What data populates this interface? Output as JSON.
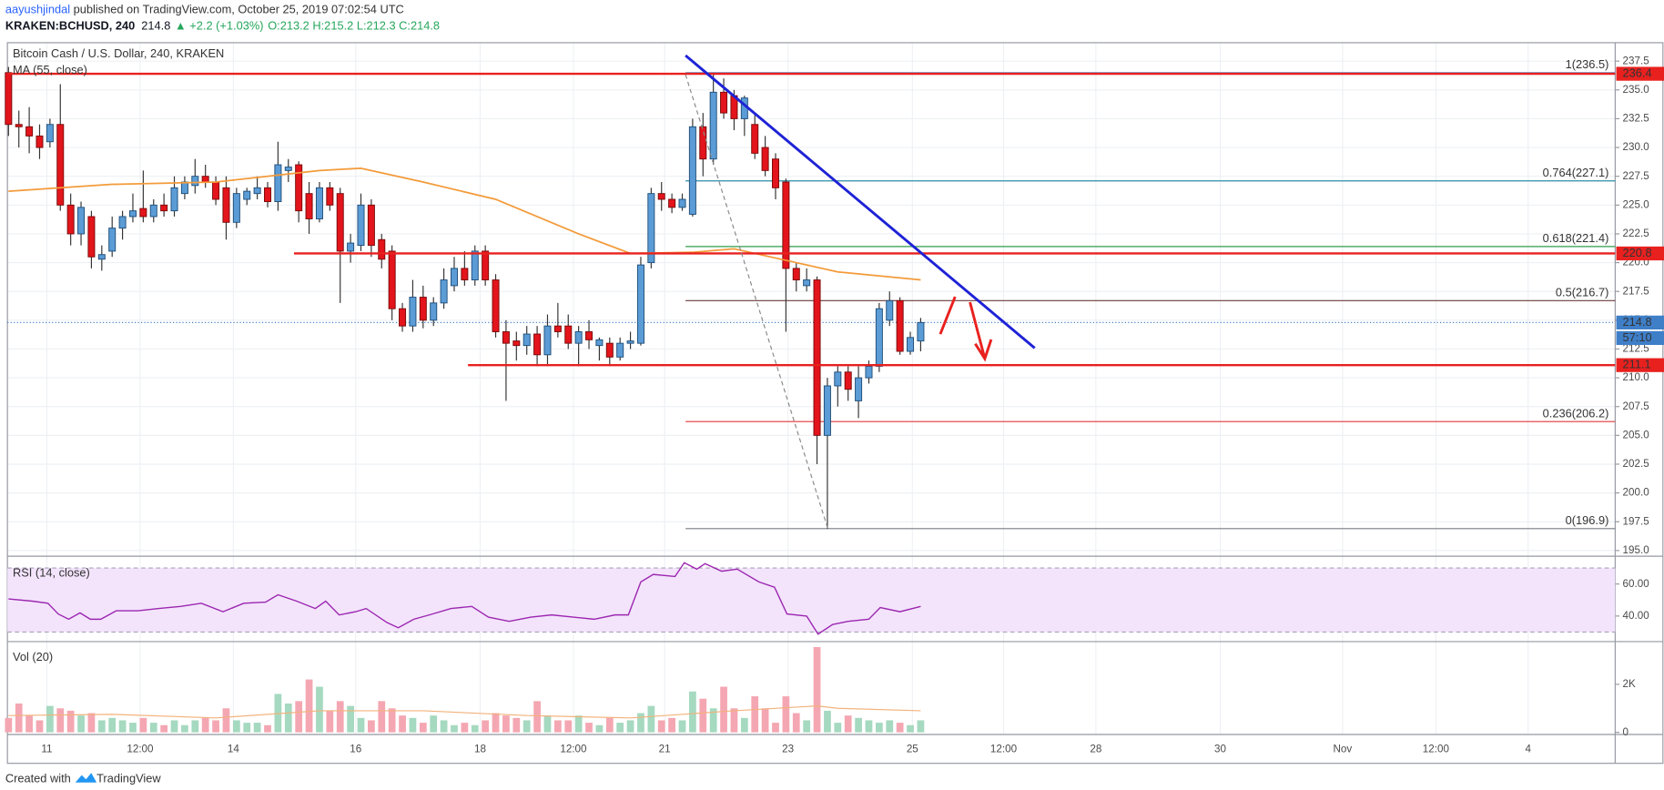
{
  "header": {
    "author": "aayushjindal",
    "published": "published on TradingView.com, October 25, 2019 07:02:54 UTC",
    "symbol": "KRAKEN:BCHUSD, 240",
    "last": "214.8",
    "change": "▲ +2.2 (+1.03%)",
    "ohlc": "O:213.2 H:215.2 L:212.3 C:214.8"
  },
  "chart_data": {
    "type": "candlestick",
    "title": "Bitcoin Cash / U.S. Dollar, 240, KRAKEN",
    "up_color": "#5b9cd6",
    "down_color": "#e3141b",
    "open": [
      236.5,
      232,
      231.8,
      231,
      230.5,
      232,
      225,
      222.5,
      224,
      220.3,
      221,
      223,
      224,
      224.7,
      224,
      225,
      224.5,
      226,
      226.7,
      227.5,
      227,
      226.5,
      223.5,
      225.5,
      226,
      226.5,
      225.3,
      228,
      228.5,
      226,
      223.8,
      226.5,
      226,
      221,
      221.5,
      225,
      222,
      221,
      216,
      214.5,
      217,
      215,
      216.5,
      218,
      219.5,
      218.5,
      221,
      218.5,
      214,
      213.2,
      212.8,
      213.8,
      212,
      214.5,
      214.5,
      213,
      214,
      212.8,
      213,
      211.8,
      213,
      213,
      220,
      226,
      225.5,
      224.8,
      224.2,
      231.8,
      229,
      234.8,
      234.5,
      232.5,
      232,
      230,
      229,
      227,
      219.5,
      218,
      218.5,
      205,
      209.3,
      210.5,
      208,
      210,
      211,
      215,
      216.7,
      212.3,
      213.2
    ],
    "high": [
      237,
      233.2,
      233.5,
      232,
      232.5,
      235.5,
      226,
      225.3,
      224.5,
      221.5,
      224,
      224.5,
      226,
      228,
      225.5,
      226,
      227.5,
      227.5,
      229,
      228.5,
      227.5,
      227.5,
      226.5,
      226.5,
      227.5,
      227,
      230.5,
      229,
      228.8,
      227,
      227,
      227,
      226.5,
      222.5,
      226,
      225.5,
      222.5,
      221.5,
      216.5,
      218.5,
      218,
      217,
      219.5,
      220.5,
      221,
      221.5,
      221.5,
      219,
      215,
      214,
      214.5,
      214.5,
      215.5,
      216.5,
      215.5,
      214.5,
      215,
      213.5,
      213.5,
      213.5,
      214,
      220.5,
      226.5,
      227,
      226,
      226,
      232.5,
      233,
      236.5,
      236,
      235,
      234.5,
      233,
      231,
      229.5,
      227.3,
      220,
      219.5,
      218.8,
      210,
      211,
      211,
      211,
      211.5,
      216.5,
      217.5,
      217,
      214,
      215.2
    ],
    "low": [
      231,
      230,
      229.5,
      229,
      230,
      224.5,
      221.5,
      221.5,
      219.5,
      219.3,
      220.5,
      222,
      223.5,
      223.5,
      223.5,
      224,
      224,
      225.5,
      226,
      226.5,
      225,
      222,
      223,
      225,
      225.5,
      224.8,
      224.5,
      227,
      223.5,
      222.5,
      223.5,
      224.5,
      216.5,
      220,
      221,
      220.5,
      219.5,
      215,
      214,
      214,
      214.3,
      214.5,
      216,
      217.5,
      218,
      218,
      218,
      213.5,
      208,
      211.5,
      212,
      211,
      211,
      213.5,
      212.5,
      211,
      212.5,
      211.5,
      211,
      211.5,
      212.5,
      212.8,
      219.5,
      224.5,
      224.3,
      224.5,
      224,
      227.5,
      228.5,
      232.5,
      231.5,
      231,
      229,
      227.5,
      225.5,
      214,
      217.5,
      217.5,
      202.5,
      196.9,
      207.5,
      208,
      206.5,
      209.5,
      210.5,
      214.5,
      212,
      212,
      212.3
    ],
    "close": [
      232,
      231.8,
      231,
      230,
      232,
      225,
      222.5,
      224.8,
      220.5,
      220.7,
      223,
      224,
      224.5,
      224,
      225,
      224.5,
      226.5,
      227,
      227.5,
      227,
      225.5,
      223.5,
      226,
      226.2,
      226.5,
      225.3,
      228.5,
      228.3,
      224.5,
      223.8,
      226.5,
      225,
      221,
      221.7,
      225,
      221.5,
      220.3,
      216,
      214.5,
      217,
      215,
      216.5,
      218.5,
      219.5,
      218.5,
      221,
      218.5,
      214,
      213,
      212.8,
      213.8,
      212,
      214.5,
      214,
      213,
      214,
      213.3,
      213.3,
      211.8,
      213,
      213.2,
      219.8,
      226,
      225.5,
      224.8,
      225.5,
      231.8,
      229,
      234.8,
      233,
      232.5,
      234.3,
      229.5,
      228,
      226.5,
      219.5,
      218.5,
      218.5,
      205,
      209.3,
      210.5,
      209,
      210,
      211,
      216,
      216.7,
      212.3,
      213.5,
      214.8
    ],
    "xlim": [
      0,
      155
    ],
    "xticks": [
      {
        "value": 3.7,
        "label": "11"
      },
      {
        "value": 12.7,
        "label": "12:00"
      },
      {
        "value": 21.7,
        "label": "14"
      },
      {
        "value": 33.5,
        "label": "16"
      },
      {
        "value": 45.5,
        "label": "18"
      },
      {
        "value": 54.5,
        "label": "12:00"
      },
      {
        "value": 63.3,
        "label": "21"
      },
      {
        "value": 75.2,
        "label": "23"
      },
      {
        "value": 87.2,
        "label": "25"
      },
      {
        "value": 96,
        "label": "12:00"
      },
      {
        "value": 104.9,
        "label": "28"
      },
      {
        "value": 116.9,
        "label": "30"
      },
      {
        "value": 128.7,
        "label": "Nov"
      },
      {
        "value": 137.7,
        "label": "12:00"
      },
      {
        "value": 146.6,
        "label": "4"
      }
    ],
    "ylim": [
      194.6,
      239.1
    ],
    "yticks": [
      237.5,
      {
        "value": 235,
        "label": "235.0"
      },
      232.5,
      {
        "value": 230,
        "label": "230.0"
      },
      227.5,
      {
        "value": 225,
        "label": "225.0"
      },
      222.5,
      {
        "value": 220,
        "label": "220.0"
      },
      217.5,
      {
        "value": 215,
        "label": "215.0"
      },
      212.5,
      {
        "value": 210,
        "label": "210.0"
      },
      207.5,
      {
        "value": 205,
        "label": "205.0"
      },
      202.5,
      {
        "value": 200,
        "label": "200.0"
      },
      197.5,
      {
        "value": 195,
        "label": "195.0"
      }
    ],
    "grid": true,
    "ma": {
      "name": "MA (55, close)",
      "color": "#f39b3a",
      "x": [
        0,
        10,
        20,
        30,
        34,
        40,
        47,
        55,
        60,
        66,
        70,
        76,
        80,
        88
      ],
      "values": [
        226.2,
        226.8,
        227,
        228,
        228.2,
        227,
        225.5,
        222.5,
        220.8,
        220.9,
        221.2,
        220,
        219.2,
        218.5
      ]
    },
    "levels": [
      {
        "value": 236.4,
        "color": "#e8211f"
      },
      {
        "value": 220.8,
        "color": "#e8211f"
      },
      {
        "value": 211.1,
        "color": "#e8211f"
      }
    ],
    "price_line": {
      "value": 214.8,
      "countdown": "57:10",
      "color": "#3f7fc8"
    },
    "fib": [
      {
        "label": "1(236.5)",
        "value": 236.5,
        "color": "#5b8fc9"
      },
      {
        "label": "0.764(227.1)",
        "value": 227.1,
        "color": "#2a8ca8"
      },
      {
        "label": "0.618(221.4)",
        "value": 221.4,
        "color": "#2e9e4a"
      },
      {
        "label": "0.5(216.7)",
        "value": 216.7,
        "color": "#6d3a3a"
      },
      {
        "label": "0.236(206.2)",
        "value": 206.2,
        "color": "#e0393e"
      },
      {
        "label": "0(196.9)",
        "value": 196.9,
        "color": "#787b86"
      }
    ],
    "rsi": {
      "name": "RSI (14, close)",
      "color": "#9c27b0",
      "x": [
        0,
        2.3,
        3.8,
        4.8,
        5.8,
        6.9,
        7.9,
        8.9,
        10.4,
        12.5,
        14.5,
        16.6,
        18.6,
        20.7,
        22.7,
        24.8,
        26,
        27.8,
        29.6,
        30.6,
        31.9,
        33.5,
        34.5,
        36.5,
        37.6,
        39.1,
        40.6,
        42.7,
        44.7,
        46.3,
        48.3,
        50.4,
        52.4,
        54.5,
        56.5,
        58.5,
        59.8,
        61,
        62.2,
        64.3,
        65.2,
        66.4,
        67.2,
        68.8,
        70.3,
        72.4,
        73.9,
        75.1,
        77,
        78.1,
        79.5,
        81,
        83,
        84.1,
        86,
        88
      ],
      "values": [
        50.7,
        49.3,
        48,
        41.3,
        38,
        42,
        38,
        38,
        43.3,
        43.3,
        44.7,
        46,
        48,
        42.7,
        48,
        48.7,
        53.3,
        49.3,
        44.7,
        49.3,
        40.7,
        42.7,
        44.7,
        36,
        32.7,
        38,
        40.7,
        44.7,
        46,
        39.3,
        36.7,
        39.3,
        40.7,
        39.3,
        38,
        40.7,
        40.7,
        61.3,
        66,
        64.7,
        73.3,
        69.3,
        72.7,
        68,
        69.3,
        61.3,
        58,
        41.3,
        40,
        28.7,
        34.7,
        36.7,
        38,
        45.3,
        42.7,
        46
      ],
      "ylim": [
        24.7,
        76.7
      ],
      "yticks": [
        {
          "value": 60,
          "label": "60.00"
        },
        {
          "value": 40,
          "label": "40.00"
        }
      ],
      "band": [
        30,
        70
      ]
    },
    "volume": {
      "name": "Vol (20)",
      "up_color": "#a5d9c0",
      "down_color": "#f4a7b2",
      "values": [
        600,
        1200,
        700,
        500,
        1100,
        1000,
        900,
        700,
        800,
        500,
        600,
        500,
        400,
        600,
        400,
        300,
        500,
        300,
        500,
        600,
        500,
        1000,
        500,
        400,
        400,
        300,
        1600,
        1200,
        1300,
        2200,
        1900,
        900,
        1300,
        1100,
        600,
        500,
        1300,
        1000,
        700,
        600,
        400,
        700,
        500,
        300,
        400,
        300,
        500,
        800,
        700,
        600,
        500,
        1300,
        700,
        500,
        500,
        700,
        400,
        300,
        600,
        400,
        500,
        800,
        1100,
        500,
        600,
        500,
        1700,
        1400,
        1000,
        1900,
        1000,
        600,
        1500,
        1000,
        400,
        1500,
        800,
        500,
        3550,
        900,
        400,
        700,
        600,
        500,
        400,
        500,
        400,
        300,
        500
      ],
      "ma": {
        "color": "#f3b27a",
        "x": [
          0,
          10,
          20,
          30,
          40,
          50,
          60,
          70,
          78,
          80,
          88
        ],
        "values": [
          700,
          750,
          600,
          900,
          900,
          700,
          600,
          900,
          1100,
          1000,
          900
        ]
      },
      "ylim": [
        -89,
        3733
      ],
      "yticks": [
        {
          "value": 2000,
          "label": "2K"
        },
        0
      ]
    }
  },
  "footer": {
    "created": "Created with",
    "brand": "TradingView"
  }
}
